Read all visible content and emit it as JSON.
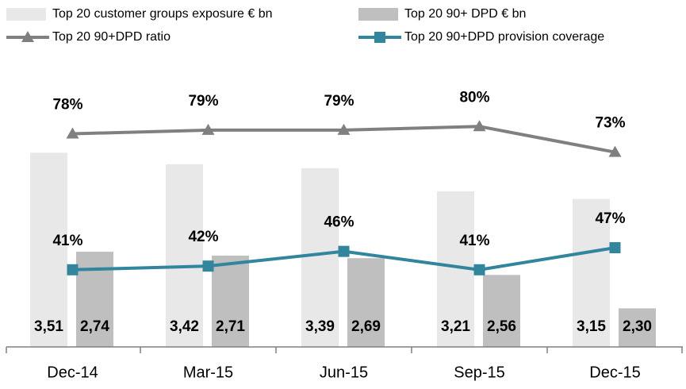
{
  "chart_data": {
    "type": "bar",
    "categories": [
      "Dec-14",
      "Mar-15",
      "Jun-15",
      "Sep-15",
      "Dec-15"
    ],
    "ylim": [
      2,
      4
    ],
    "y2lim": [
      20,
      90
    ],
    "series": [
      {
        "name": "Top 20 customer groups exposure € bn",
        "type": "bar",
        "color": "#e8e8e8",
        "values": [
          3.51,
          3.42,
          3.39,
          3.21,
          3.15
        ],
        "value_labels": [
          "3,51",
          "3,42",
          "3,39",
          "3,21",
          "3,15"
        ]
      },
      {
        "name": "Top 20 90+ DPD € bn",
        "type": "bar",
        "color": "#bfbfbf",
        "values": [
          2.74,
          2.71,
          2.69,
          2.56,
          2.3
        ],
        "value_labels": [
          "2,74",
          "2,71",
          "2,69",
          "2,56",
          "2,30"
        ]
      },
      {
        "name": "Top 20 90+DPD ratio",
        "type": "line",
        "axis": "y2",
        "color": "#808080",
        "marker": "triangle",
        "values": [
          78,
          79,
          79,
          80,
          73
        ],
        "value_labels": [
          "78%",
          "79%",
          "79%",
          "80%",
          "73%"
        ]
      },
      {
        "name": "Top 20 90+DPD provision coverage",
        "type": "line",
        "axis": "y2",
        "color": "#31859c",
        "marker": "square",
        "values": [
          41,
          42,
          46,
          41,
          47
        ],
        "value_labels": [
          "41%",
          "42%",
          "46%",
          "41%",
          "47%"
        ]
      }
    ]
  }
}
